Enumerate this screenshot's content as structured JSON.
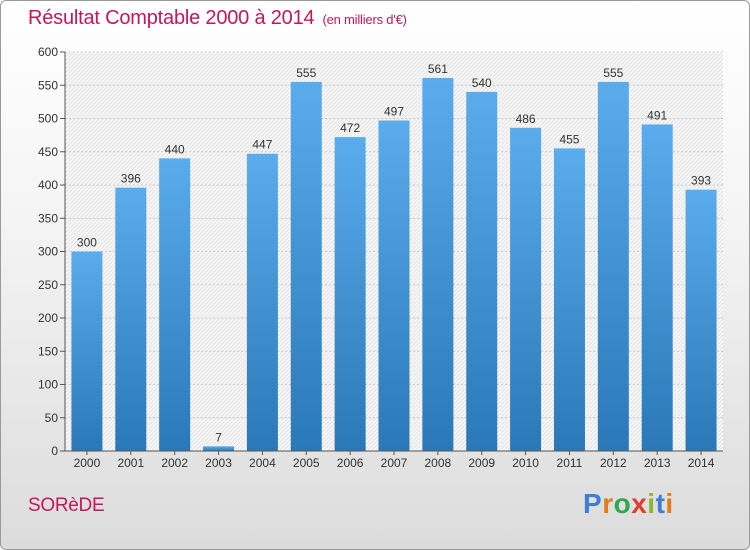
{
  "chart_data": {
    "type": "bar",
    "title": "Résultat Comptable 2000 à 2014",
    "subtitle": "(en milliers d'€)",
    "categories": [
      "2000",
      "2001",
      "2002",
      "2003",
      "2004",
      "2005",
      "2006",
      "2007",
      "2008",
      "2009",
      "2010",
      "2011",
      "2012",
      "2013",
      "2014"
    ],
    "values": [
      300,
      396,
      440,
      7,
      447,
      555,
      472,
      497,
      561,
      540,
      486,
      455,
      555,
      491,
      393
    ],
    "ylim": [
      0,
      600
    ],
    "yticks": [
      0,
      50,
      100,
      150,
      200,
      250,
      300,
      350,
      400,
      450,
      500,
      550,
      600
    ],
    "xlabel": "",
    "ylabel": "",
    "grid": true,
    "bar_color": "#3a8fd6"
  },
  "footer": {
    "commune": "SORèDE",
    "logo": [
      "P",
      "r",
      "o",
      "x",
      "i",
      "t",
      "i"
    ],
    "logo_colors": [
      "#3f7fd0",
      "#e07c1a",
      "#2fa84f",
      "#e23b2f",
      "#8ab82f",
      "#3f7fd0",
      "#e07c1a"
    ]
  }
}
